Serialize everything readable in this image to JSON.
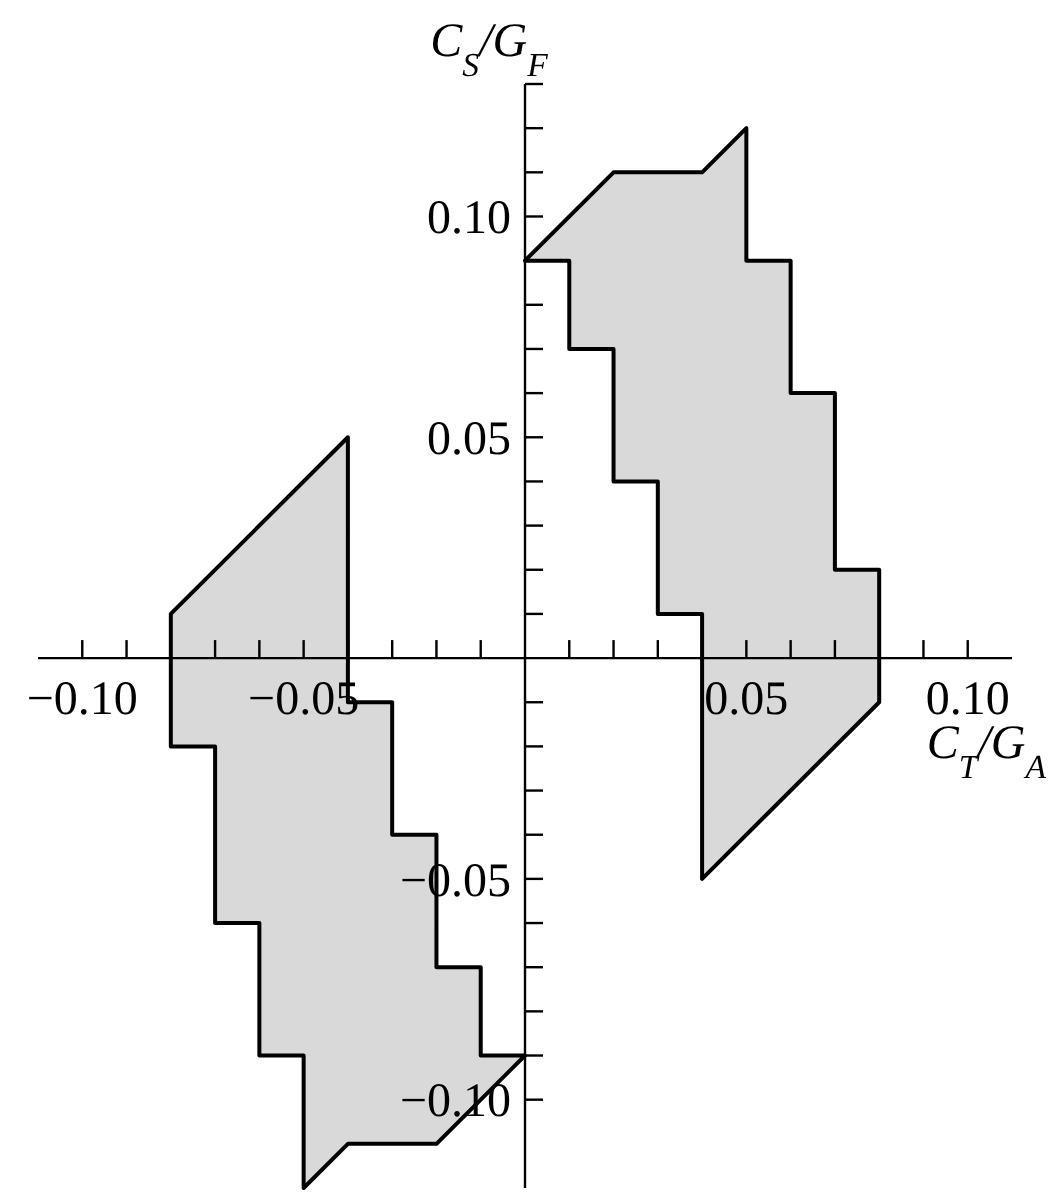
{
  "chart_data": {
    "type": "area",
    "xlabel": "C$_{T}$/G$_{A}$",
    "ylabel": "C$_{S}$/G$_{F}$",
    "xlim": [
      -0.11,
      0.11
    ],
    "ylim": [
      -0.12,
      0.13
    ],
    "xticks": [
      {
        "value": -0.1,
        "label": "−0.10"
      },
      {
        "value": -0.09,
        "label": null
      },
      {
        "value": -0.08,
        "label": null
      },
      {
        "value": -0.07,
        "label": null
      },
      {
        "value": -0.06,
        "label": null
      },
      {
        "value": -0.05,
        "label": "−0.05"
      },
      {
        "value": -0.04,
        "label": null
      },
      {
        "value": -0.03,
        "label": null
      },
      {
        "value": -0.02,
        "label": null
      },
      {
        "value": -0.01,
        "label": null
      },
      {
        "value": 0.01,
        "label": null
      },
      {
        "value": 0.02,
        "label": null
      },
      {
        "value": 0.03,
        "label": null
      },
      {
        "value": 0.04,
        "label": null
      },
      {
        "value": 0.05,
        "label": "0.05"
      },
      {
        "value": 0.06,
        "label": null
      },
      {
        "value": 0.07,
        "label": null
      },
      {
        "value": 0.08,
        "label": null
      },
      {
        "value": 0.09,
        "label": null
      },
      {
        "value": 0.1,
        "label": "0.10"
      }
    ],
    "yticks": [
      {
        "value": -0.1,
        "label": "−0.10"
      },
      {
        "value": -0.09,
        "label": null
      },
      {
        "value": -0.08,
        "label": null
      },
      {
        "value": -0.07,
        "label": null
      },
      {
        "value": -0.06,
        "label": null
      },
      {
        "value": -0.05,
        "label": "−0.05"
      },
      {
        "value": -0.04,
        "label": null
      },
      {
        "value": -0.03,
        "label": null
      },
      {
        "value": -0.02,
        "label": null
      },
      {
        "value": -0.01,
        "label": null
      },
      {
        "value": 0.01,
        "label": null
      },
      {
        "value": 0.02,
        "label": null
      },
      {
        "value": 0.03,
        "label": null
      },
      {
        "value": 0.04,
        "label": null
      },
      {
        "value": 0.05,
        "label": "0.05"
      },
      {
        "value": 0.06,
        "label": null
      },
      {
        "value": 0.07,
        "label": null
      },
      {
        "value": 0.08,
        "label": null
      },
      {
        "value": 0.09,
        "label": null
      },
      {
        "value": 0.1,
        "label": "0.10"
      },
      {
        "value": 0.11,
        "label": null
      },
      {
        "value": 0.12,
        "label": null
      },
      {
        "value": 0.13,
        "label": null
      }
    ],
    "series": [
      {
        "color": "#d9d9d9",
        "x": [
          -0.04,
          -0.04,
          -0.03,
          -0.03,
          -0.02,
          -0.02,
          -0.01,
          -0.01,
          0,
          -0.02,
          -0.04,
          -0.05,
          -0.05,
          -0.06,
          -0.06,
          -0.07,
          -0.07,
          -0.08,
          -0.08,
          -0.04
        ],
        "values": [
          0.05,
          -0.01,
          -0.01,
          -0.04,
          -0.04,
          -0.07,
          -0.07,
          -0.09,
          -0.09,
          -0.11,
          -0.11,
          -0.12,
          -0.09,
          -0.09,
          -0.06,
          -0.06,
          -0.02,
          -0.02,
          0.01,
          0.05
        ]
      },
      {
        "color": "#d9d9d9",
        "x": [
          0,
          0.02,
          0.04,
          0.05,
          0.05,
          0.06,
          0.06,
          0.07,
          0.07,
          0.08,
          0.08,
          0.04,
          0.04,
          0.03,
          0.03,
          0.02,
          0.02,
          0.01,
          0.01,
          0
        ],
        "values": [
          0.09,
          0.11,
          0.11,
          0.12,
          0.09,
          0.09,
          0.06,
          0.06,
          0.02,
          0.02,
          -0.01,
          -0.05,
          0.01,
          0.01,
          0.04,
          0.04,
          0.07,
          0.07,
          0.09,
          0.09
        ]
      }
    ]
  }
}
